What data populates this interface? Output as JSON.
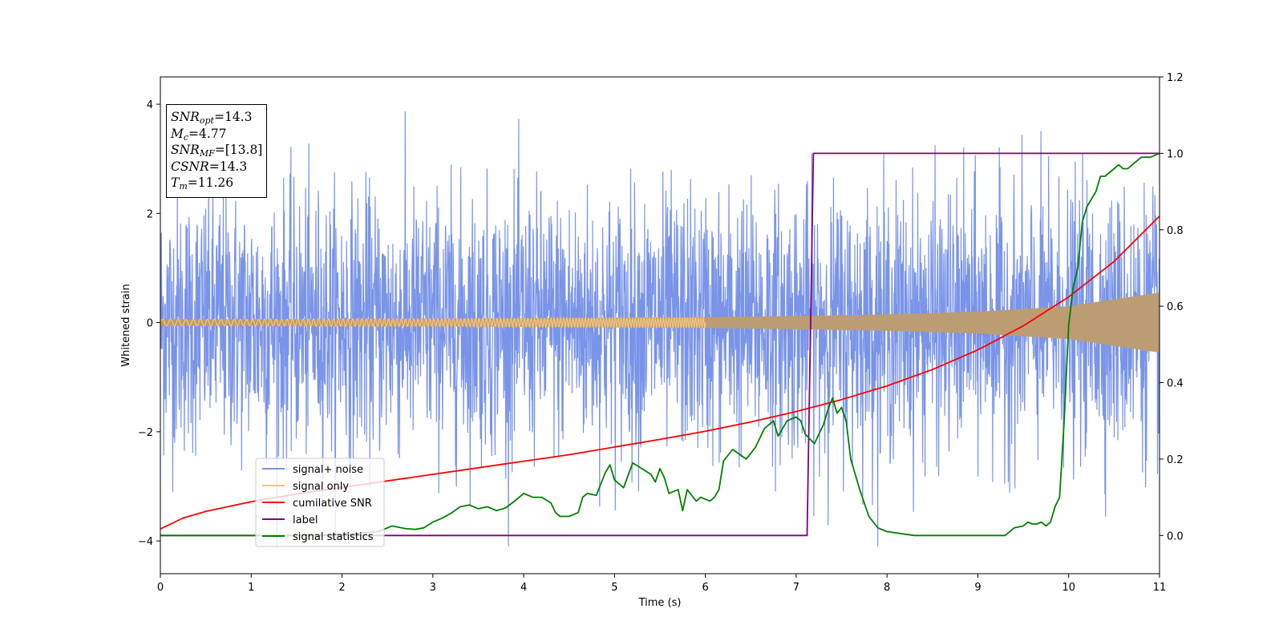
{
  "chart_data": {
    "type": "line",
    "xlabel": "Time (s)",
    "ylabel": "Whitened strain",
    "xlim": [
      0,
      11
    ],
    "ylim": [
      -4.6,
      4.5
    ],
    "y2lim": [
      -0.1,
      1.2
    ],
    "x_ticks": [
      "0",
      "1",
      "2",
      "3",
      "4",
      "5",
      "6",
      "7",
      "8",
      "9",
      "10",
      "11"
    ],
    "y_ticks": [
      "4",
      "2",
      "0",
      "−2",
      "−4"
    ],
    "y2_ticks": [
      "1.2",
      "1.0",
      "0.8",
      "0.6",
      "0.4",
      "0.2",
      "0.0"
    ],
    "grid": false,
    "legend_position": "lower-left",
    "colors": {
      "signal_noise": "#7994e8",
      "signal_only": "#f5c582",
      "signal_only_fill": "#bc9c73",
      "cumulative_snr": "#ff0000",
      "label": "#800080",
      "signal_statistics": "#008000"
    },
    "series": [
      {
        "name": "signal+ noise",
        "axis": "left",
        "style": "noise",
        "y_range": [
          -4.1,
          4.1
        ],
        "typical_envelope": [
          -2.6,
          2.6
        ]
      },
      {
        "name": "signal only",
        "axis": "left",
        "style": "envelope",
        "x": [
          0,
          1,
          2,
          3,
          4,
          5,
          6,
          7,
          8,
          9,
          10,
          11
        ],
        "amplitude": [
          0.06,
          0.06,
          0.07,
          0.07,
          0.08,
          0.09,
          0.1,
          0.12,
          0.15,
          0.2,
          0.3,
          0.55
        ]
      },
      {
        "name": "cumilative SNR",
        "axis": "left",
        "x": [
          0,
          0.25,
          0.5,
          1,
          1.5,
          2,
          2.5,
          3,
          3.5,
          4,
          4.5,
          5,
          5.5,
          6,
          6.5,
          7,
          7.5,
          8,
          8.5,
          9,
          9.5,
          10,
          10.5,
          11
        ],
        "values": [
          -3.78,
          -3.58,
          -3.46,
          -3.28,
          -3.14,
          -3.02,
          -2.9,
          -2.78,
          -2.66,
          -2.54,
          -2.42,
          -2.28,
          -2.14,
          -1.99,
          -1.82,
          -1.63,
          -1.41,
          -1.16,
          -0.86,
          -0.5,
          -0.06,
          0.47,
          1.12,
          1.95
        ]
      },
      {
        "name": "label",
        "axis": "right",
        "x": [
          0,
          7.12,
          7.19,
          11
        ],
        "values": [
          0,
          0,
          1,
          1
        ]
      },
      {
        "name": "signal statistics",
        "axis": "right",
        "x": [
          0,
          0.5,
          1,
          1.5,
          2,
          2.2,
          2.4,
          2.55,
          2.7,
          2.8,
          2.9,
          3.0,
          3.1,
          3.2,
          3.3,
          3.4,
          3.5,
          3.6,
          3.7,
          3.8,
          3.9,
          4.0,
          4.1,
          4.2,
          4.3,
          4.35,
          4.4,
          4.5,
          4.6,
          4.65,
          4.7,
          4.8,
          4.9,
          4.95,
          5.0,
          5.1,
          5.2,
          5.3,
          5.4,
          5.45,
          5.5,
          5.55,
          5.6,
          5.7,
          5.75,
          5.8,
          5.9,
          5.95,
          6.05,
          6.1,
          6.15,
          6.2,
          6.3,
          6.45,
          6.55,
          6.65,
          6.75,
          6.8,
          6.9,
          6.95,
          7.0,
          7.05,
          7.1,
          7.2,
          7.3,
          7.35,
          7.4,
          7.45,
          7.5,
          7.55,
          7.6,
          7.7,
          7.8,
          7.9,
          8.0,
          8.3,
          8.6,
          9.0,
          9.3,
          9.4,
          9.5,
          9.55,
          9.6,
          9.65,
          9.7,
          9.75,
          9.8,
          9.85,
          9.9,
          9.95,
          10.0,
          10.05,
          10.1,
          10.15,
          10.2,
          10.3,
          10.35,
          10.4,
          10.5,
          10.55,
          10.6,
          10.65,
          10.7,
          10.8,
          10.9,
          11.0
        ],
        "values": [
          0.0,
          0.0,
          0.0,
          0.0,
          0.003,
          0.006,
          0.01,
          0.025,
          0.018,
          0.016,
          0.02,
          0.035,
          0.045,
          0.058,
          0.075,
          0.08,
          0.07,
          0.075,
          0.065,
          0.072,
          0.09,
          0.11,
          0.1,
          0.1,
          0.085,
          0.06,
          0.05,
          0.05,
          0.06,
          0.1,
          0.11,
          0.105,
          0.165,
          0.185,
          0.145,
          0.125,
          0.19,
          0.175,
          0.16,
          0.14,
          0.175,
          0.15,
          0.11,
          0.12,
          0.065,
          0.12,
          0.09,
          0.1,
          0.09,
          0.1,
          0.12,
          0.195,
          0.225,
          0.2,
          0.23,
          0.28,
          0.3,
          0.26,
          0.3,
          0.305,
          0.31,
          0.3,
          0.265,
          0.24,
          0.29,
          0.33,
          0.36,
          0.32,
          0.335,
          0.3,
          0.2,
          0.12,
          0.05,
          0.02,
          0.01,
          0.0,
          0.0,
          0.0,
          0.0,
          0.02,
          0.025,
          0.035,
          0.03,
          0.03,
          0.035,
          0.025,
          0.035,
          0.075,
          0.1,
          0.3,
          0.55,
          0.65,
          0.7,
          0.82,
          0.86,
          0.9,
          0.94,
          0.94,
          0.96,
          0.97,
          0.96,
          0.96,
          0.97,
          0.99,
          0.99,
          1.0
        ]
      }
    ],
    "annotation": {
      "snr_opt_base": "SNR",
      "snr_opt_sub": "opt",
      "snr_opt_value": "=14.3",
      "mc_base": "M",
      "mc_sub": "c",
      "mc_value": "=4.77",
      "snr_mf_base": "SNR",
      "snr_mf_sub": "MF",
      "snr_mf_value": "=[13.8]",
      "csnr_base": "CSNR",
      "csnr_value": "=14.3",
      "tm_base": "T",
      "tm_sub": "m",
      "tm_value": "=11.26"
    }
  }
}
